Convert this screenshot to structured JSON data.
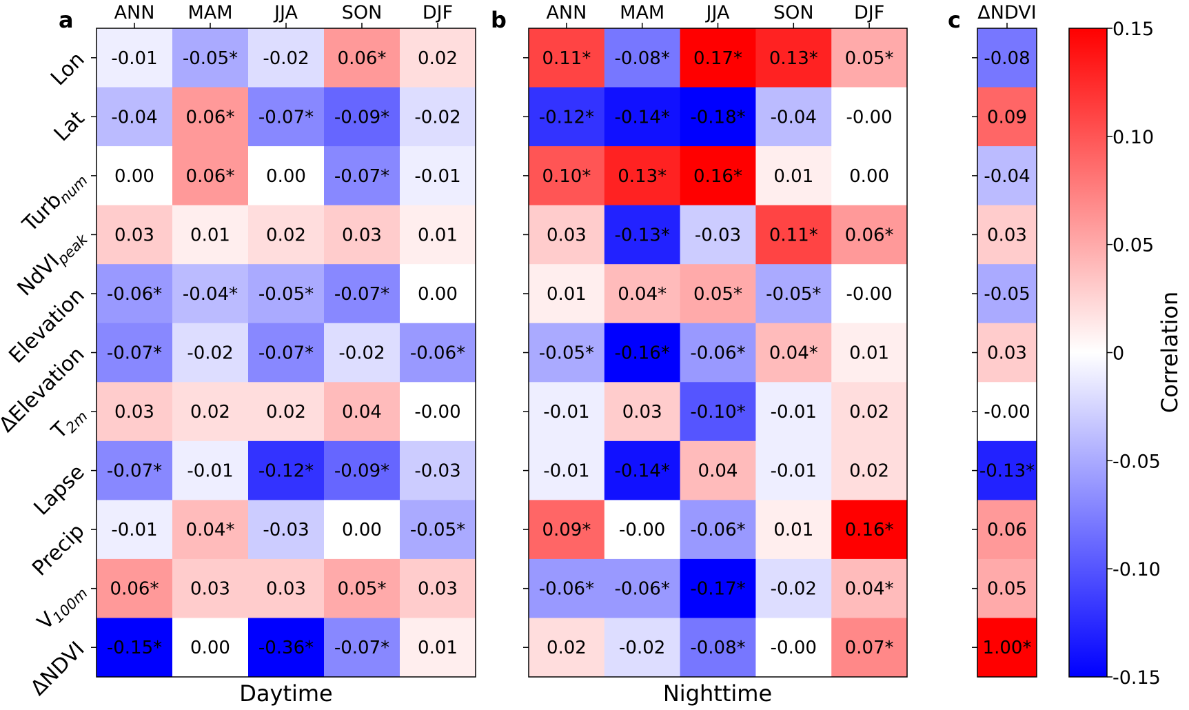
{
  "chart_data": [
    {
      "type": "heatmap",
      "panel_label": "a",
      "xlabel": "Daytime",
      "columns": [
        "ANN",
        "MAM",
        "JJA",
        "SON",
        "DJF"
      ],
      "rows": [
        {
          "label": "Lon",
          "sub": ""
        },
        {
          "label": "Lat",
          "sub": ""
        },
        {
          "label": "Turb",
          "sub": "num"
        },
        {
          "label": "NdVI",
          "sub": "peak"
        },
        {
          "label": "Elevation",
          "sub": ""
        },
        {
          "label": "ΔElevation",
          "sub": ""
        },
        {
          "label": "T",
          "sub": "2m"
        },
        {
          "label": "Lapse",
          "sub": ""
        },
        {
          "label": "Precip",
          "sub": ""
        },
        {
          "label": "V",
          "sub": "100m"
        },
        {
          "label": "ΔNDVI",
          "sub": ""
        }
      ],
      "cells": [
        [
          "-0.01",
          "-0.05*",
          "-0.02",
          "0.06*",
          "0.02"
        ],
        [
          "-0.04",
          "0.06*",
          "-0.07*",
          "-0.09*",
          "-0.02"
        ],
        [
          "0.00",
          "0.06*",
          "0.00",
          "-0.07*",
          "-0.01"
        ],
        [
          "0.03",
          "0.01",
          "0.02",
          "0.03",
          "0.01"
        ],
        [
          "-0.06*",
          "-0.04*",
          "-0.05*",
          "-0.07*",
          "0.00"
        ],
        [
          "-0.07*",
          "-0.02",
          "-0.07*",
          "-0.02",
          "-0.06*"
        ],
        [
          "0.03",
          "0.02",
          "0.02",
          "0.04",
          "-0.00"
        ],
        [
          "-0.07*",
          "-0.01",
          "-0.12*",
          "-0.09*",
          "-0.03"
        ],
        [
          "-0.01",
          "0.04*",
          "-0.03",
          "0.00",
          "-0.05*"
        ],
        [
          "0.06*",
          "0.03",
          "0.03",
          "0.05*",
          "0.03"
        ],
        [
          "-0.15*",
          "0.00",
          "-0.36*",
          "-0.07*",
          "0.01"
        ]
      ]
    },
    {
      "type": "heatmap",
      "panel_label": "b",
      "xlabel": "Nighttime",
      "columns": [
        "ANN",
        "MAM",
        "JJA",
        "SON",
        "DJF"
      ],
      "cells": [
        [
          "0.11*",
          "-0.08*",
          "0.17*",
          "0.13*",
          "0.05*"
        ],
        [
          "-0.12*",
          "-0.14*",
          "-0.18*",
          "-0.04",
          "-0.00"
        ],
        [
          "0.10*",
          "0.13*",
          "0.16*",
          "0.01",
          "0.00"
        ],
        [
          "0.03",
          "-0.13*",
          "-0.03",
          "0.11*",
          "0.06*"
        ],
        [
          "0.01",
          "0.04*",
          "0.05*",
          "-0.05*",
          "-0.00"
        ],
        [
          "-0.05*",
          "-0.16*",
          "-0.06*",
          "0.04*",
          "0.01"
        ],
        [
          "-0.01",
          "0.03",
          "-0.10*",
          "-0.01",
          "0.02"
        ],
        [
          "-0.01",
          "-0.14*",
          "0.04",
          "-0.01",
          "0.02"
        ],
        [
          "0.09*",
          "-0.00",
          "-0.06*",
          "0.01",
          "0.16*"
        ],
        [
          "-0.06*",
          "-0.06*",
          "-0.17*",
          "-0.02",
          "0.04*"
        ],
        [
          "0.02",
          "-0.02",
          "-0.08*",
          "-0.00",
          "0.07*"
        ]
      ]
    },
    {
      "type": "heatmap",
      "panel_label": "c",
      "xlabel": "",
      "columns": [
        "ΔNDVI"
      ],
      "cells": [
        [
          "-0.08"
        ],
        [
          "0.09"
        ],
        [
          "-0.04"
        ],
        [
          "0.03"
        ],
        [
          "-0.05"
        ],
        [
          "0.03"
        ],
        [
          "-0.00"
        ],
        [
          "-0.13*"
        ],
        [
          "0.06"
        ],
        [
          "0.05"
        ],
        [
          "1.00*"
        ]
      ]
    }
  ],
  "colorbar": {
    "label": "Correlation",
    "colormap": "bwr",
    "range": [
      -0.15,
      0.15
    ],
    "ticks": [
      "0.15",
      "0.10",
      "0.05",
      "0",
      "-0.05",
      "-0.10",
      "-0.15"
    ],
    "tick_values": [
      0.15,
      0.1,
      0.05,
      0,
      -0.05,
      -0.1,
      -0.15
    ],
    "colors": {
      "min": "#0000ff",
      "mid": "#ffffff",
      "max": "#ff0000"
    }
  },
  "star_meaning_shown": "*"
}
